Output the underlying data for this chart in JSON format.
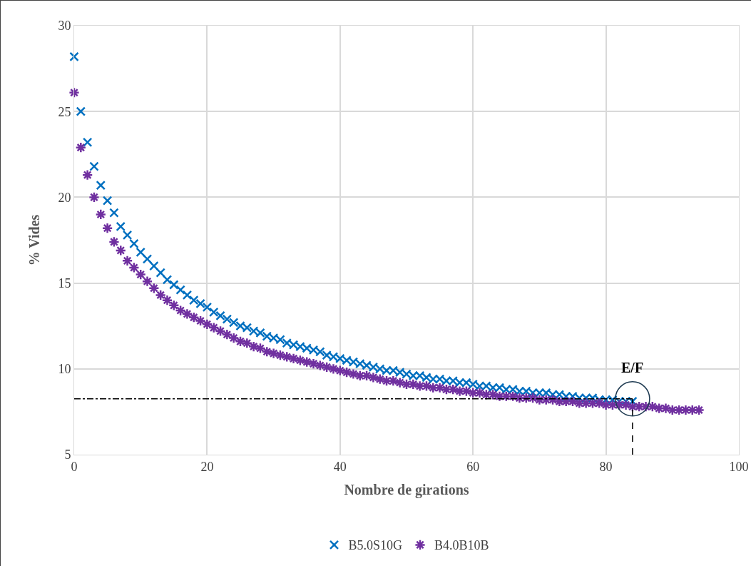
{
  "chart_data": {
    "type": "scatter",
    "xlabel": "Nombre de girations",
    "ylabel": "% Vides",
    "xlim": [
      0,
      100
    ],
    "xticks": [
      0,
      20,
      40,
      60,
      80,
      100
    ],
    "ylim": [
      5,
      30
    ],
    "yticks": [
      5,
      10,
      15,
      20,
      25,
      30
    ],
    "grid": true,
    "legend": "bottom",
    "series": [
      {
        "name": "B5.0S10G",
        "color": "#0070c0",
        "marker": "cross",
        "x": [
          0,
          1,
          2,
          3,
          4,
          5,
          6,
          7,
          8,
          9,
          10,
          11,
          12,
          13,
          14,
          15,
          16,
          17,
          18,
          19,
          20,
          21,
          22,
          23,
          24,
          25,
          26,
          27,
          28,
          29,
          30,
          31,
          32,
          33,
          34,
          35,
          36,
          37,
          38,
          39,
          40,
          41,
          42,
          43,
          44,
          45,
          46,
          47,
          48,
          49,
          50,
          51,
          52,
          53,
          54,
          55,
          56,
          57,
          58,
          59,
          60,
          61,
          62,
          63,
          64,
          65,
          66,
          67,
          68,
          69,
          70,
          71,
          72,
          73,
          74,
          75,
          76,
          77,
          78,
          79,
          80,
          81,
          82,
          83,
          84
        ],
        "values": [
          28.2,
          25.0,
          23.2,
          21.8,
          20.7,
          19.8,
          19.1,
          18.3,
          17.8,
          17.3,
          16.8,
          16.4,
          16.0,
          15.6,
          15.2,
          14.9,
          14.6,
          14.3,
          14.0,
          13.8,
          13.6,
          13.3,
          13.1,
          12.9,
          12.7,
          12.5,
          12.4,
          12.2,
          12.1,
          11.9,
          11.8,
          11.7,
          11.5,
          11.4,
          11.3,
          11.2,
          11.1,
          11.0,
          10.8,
          10.7,
          10.6,
          10.5,
          10.4,
          10.3,
          10.2,
          10.1,
          10.0,
          9.9,
          9.9,
          9.8,
          9.7,
          9.6,
          9.6,
          9.5,
          9.4,
          9.4,
          9.3,
          9.3,
          9.2,
          9.2,
          9.1,
          9.0,
          9.0,
          8.9,
          8.9,
          8.8,
          8.8,
          8.7,
          8.7,
          8.6,
          8.6,
          8.6,
          8.5,
          8.5,
          8.4,
          8.4,
          8.3,
          8.3,
          8.3,
          8.2,
          8.2,
          8.2,
          8.1,
          8.1,
          8.1
        ]
      },
      {
        "name": "B4.0B10B",
        "color": "#7030a0",
        "marker": "cross",
        "x": [
          0,
          1,
          2,
          3,
          4,
          5,
          6,
          7,
          8,
          9,
          10,
          11,
          12,
          13,
          14,
          15,
          16,
          17,
          18,
          19,
          20,
          21,
          22,
          23,
          24,
          25,
          26,
          27,
          28,
          29,
          30,
          31,
          32,
          33,
          34,
          35,
          36,
          37,
          38,
          39,
          40,
          41,
          42,
          43,
          44,
          45,
          46,
          47,
          48,
          49,
          50,
          51,
          52,
          53,
          54,
          55,
          56,
          57,
          58,
          59,
          60,
          61,
          62,
          63,
          64,
          65,
          66,
          67,
          68,
          69,
          70,
          71,
          72,
          73,
          74,
          75,
          76,
          77,
          78,
          79,
          80,
          81,
          82,
          83,
          84,
          85,
          86,
          87,
          88,
          89,
          90,
          91,
          92,
          93,
          94
        ],
        "values": [
          26.1,
          22.9,
          21.3,
          20.0,
          19.0,
          18.2,
          17.4,
          16.9,
          16.3,
          15.9,
          15.5,
          15.1,
          14.7,
          14.3,
          14.0,
          13.7,
          13.4,
          13.2,
          13.0,
          12.8,
          12.6,
          12.4,
          12.2,
          12.0,
          11.8,
          11.6,
          11.5,
          11.3,
          11.2,
          11.0,
          10.9,
          10.8,
          10.7,
          10.6,
          10.5,
          10.4,
          10.3,
          10.2,
          10.1,
          10.0,
          9.9,
          9.8,
          9.7,
          9.6,
          9.6,
          9.5,
          9.4,
          9.3,
          9.3,
          9.2,
          9.1,
          9.1,
          9.0,
          9.0,
          8.9,
          8.9,
          8.8,
          8.8,
          8.7,
          8.7,
          8.6,
          8.6,
          8.5,
          8.5,
          8.4,
          8.4,
          8.4,
          8.3,
          8.3,
          8.3,
          8.2,
          8.2,
          8.2,
          8.1,
          8.1,
          8.1,
          8.0,
          8.0,
          8.0,
          8.0,
          7.9,
          7.9,
          7.9,
          7.9,
          7.8,
          7.8,
          7.8,
          7.8,
          7.7,
          7.7,
          7.6,
          7.6,
          7.6,
          7.6,
          7.6
        ]
      }
    ],
    "ref_lines": [
      {
        "axis": "y",
        "value": 8.25,
        "line_style": "dashdot",
        "color": "#000000"
      },
      {
        "axis": "x",
        "value": 84,
        "line_style": "dashed",
        "color": "#000000"
      }
    ],
    "annotations": [
      {
        "text": "E/F",
        "x": 84,
        "y": 8.25
      }
    ]
  }
}
